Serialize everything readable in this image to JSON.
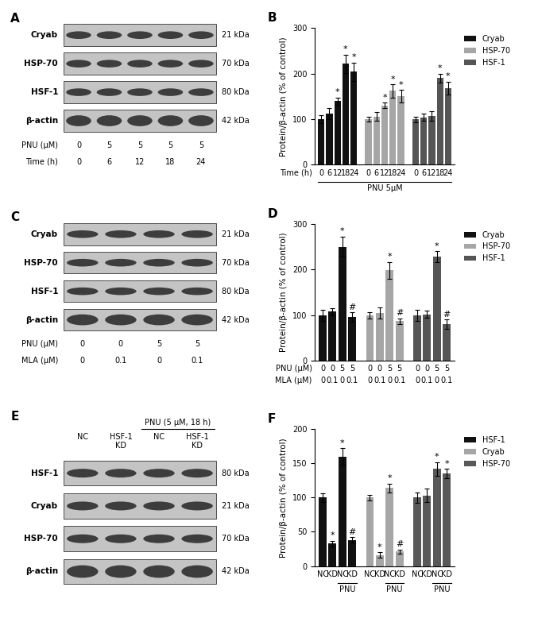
{
  "blots": [
    {
      "title": "A",
      "rows": [
        {
          "name": "Cryab",
          "size": "21 kDa"
        },
        {
          "name": "HSP-70",
          "size": "70 kDa"
        },
        {
          "name": "HSF-1",
          "size": "80 kDa"
        },
        {
          "name": "β-actin",
          "size": "42 kDa"
        }
      ],
      "conditions": [
        {
          "name": "PNU (μM)",
          "values": [
            "0",
            "5",
            "5",
            "5",
            "5"
          ]
        },
        {
          "name": "Time (h)",
          "values": [
            "0",
            "6",
            "12",
            "18",
            "24"
          ]
        }
      ]
    },
    {
      "title": "C",
      "rows": [
        {
          "name": "Cryab",
          "size": "21 kDa"
        },
        {
          "name": "HSP-70",
          "size": "70 kDa"
        },
        {
          "name": "HSF-1",
          "size": "80 kDa"
        },
        {
          "name": "β-actin",
          "size": "42 kDa"
        }
      ],
      "conditions": [
        {
          "name": "PNU (μM)",
          "values": [
            "0",
            "0",
            "5",
            "5"
          ]
        },
        {
          "name": "MLA (μM)",
          "values": [
            "0",
            "0.1",
            "0",
            "0.1"
          ]
        }
      ]
    },
    {
      "title": "E",
      "rows": [
        {
          "name": "HSF-1",
          "size": "80 kDa"
        },
        {
          "name": "Cryab",
          "size": "21 kDa"
        },
        {
          "name": "HSP-70",
          "size": "70 kDa"
        },
        {
          "name": "β-actin",
          "size": "42 kDa"
        }
      ],
      "lanes": [
        "NC",
        "HSF-1\nKD",
        "NC",
        "HSF-1\nKD"
      ],
      "header_spans": [
        {
          "text": "PNU (5 μM, 18 h)",
          "from": 2,
          "to": 3
        }
      ]
    }
  ],
  "chart_data": [
    {
      "type": "bar",
      "title": "B",
      "ylabel": "Protein/β-actin (% of control)",
      "ylim": [
        0,
        300
      ],
      "yticks": [
        0,
        100,
        200,
        300
      ],
      "legend": "upper right",
      "x_rows": [
        {
          "name": "Time (h)",
          "values": [
            "0",
            "6",
            "12",
            "18",
            "24",
            "0",
            "6",
            "12",
            "18",
            "24",
            "0",
            "6",
            "12",
            "18",
            "24"
          ]
        }
      ],
      "spans": [
        {
          "text": "PNU 5μM",
          "from": 0,
          "to": 14
        }
      ],
      "series": [
        {
          "name": "Cryab",
          "color": "#111111",
          "values": [
            100,
            112,
            140,
            222,
            204,
            null,
            null,
            null,
            null,
            null,
            null,
            null,
            null,
            null,
            null
          ],
          "errors": [
            8,
            12,
            8,
            20,
            20,
            null,
            null,
            null,
            null,
            null,
            null,
            null,
            null,
            null,
            null
          ],
          "marks": [
            null,
            null,
            "*",
            "*",
            "*",
            null,
            null,
            null,
            null,
            null,
            null,
            null,
            null,
            null,
            null
          ]
        },
        {
          "name": "HSP-70",
          "color": "#a6a6a6",
          "values": [
            null,
            null,
            null,
            null,
            null,
            100,
            106,
            130,
            162,
            150,
            null,
            null,
            null,
            null,
            null
          ],
          "errors": [
            null,
            null,
            null,
            null,
            null,
            5,
            10,
            6,
            14,
            14,
            null,
            null,
            null,
            null,
            null
          ],
          "marks": [
            null,
            null,
            null,
            null,
            null,
            null,
            null,
            "*",
            "*",
            "*",
            null,
            null,
            null,
            null,
            null
          ]
        },
        {
          "name": "HSF-1",
          "color": "#555555",
          "values": [
            null,
            null,
            null,
            null,
            null,
            null,
            null,
            null,
            null,
            null,
            100,
            104,
            107,
            190,
            168
          ],
          "errors": [
            null,
            null,
            null,
            null,
            null,
            null,
            null,
            null,
            null,
            null,
            6,
            8,
            10,
            10,
            14
          ],
          "marks": [
            null,
            null,
            null,
            null,
            null,
            null,
            null,
            null,
            null,
            null,
            null,
            null,
            null,
            "*",
            "*"
          ]
        }
      ]
    },
    {
      "type": "bar",
      "title": "D",
      "ylabel": "Protein/β-actin (% of control)",
      "ylim": [
        0,
        300
      ],
      "yticks": [
        0,
        100,
        200,
        300
      ],
      "legend": "upper right",
      "x_rows": [
        {
          "name": "PNU (μM)",
          "values": [
            "0",
            "0",
            "5",
            "5",
            "0",
            "0",
            "5",
            "5",
            "0",
            "0",
            "5",
            "5"
          ]
        },
        {
          "name": "MLA (μM)",
          "values": [
            "0",
            "0.1",
            "0",
            "0.1",
            "0",
            "0.1",
            "0",
            "0.1",
            "0",
            "0.1",
            "0",
            "0.1"
          ]
        }
      ],
      "series": [
        {
          "name": "Cryab",
          "color": "#111111",
          "values": [
            100,
            108,
            250,
            96,
            null,
            null,
            null,
            null,
            null,
            null,
            null,
            null
          ],
          "errors": [
            12,
            8,
            22,
            10,
            null,
            null,
            null,
            null,
            null,
            null,
            null,
            null
          ],
          "marks": [
            null,
            null,
            "*",
            "#",
            null,
            null,
            null,
            null,
            null,
            null,
            null,
            null
          ]
        },
        {
          "name": "HSP-70",
          "color": "#a6a6a6",
          "values": [
            null,
            null,
            null,
            null,
            100,
            105,
            198,
            87,
            null,
            null,
            null,
            null
          ],
          "errors": [
            null,
            null,
            null,
            null,
            7,
            12,
            18,
            6,
            null,
            null,
            null,
            null
          ],
          "marks": [
            null,
            null,
            null,
            null,
            null,
            null,
            "*",
            "#",
            null,
            null,
            null,
            null
          ]
        },
        {
          "name": "HSF-1",
          "color": "#555555",
          "values": [
            null,
            null,
            null,
            null,
            null,
            null,
            null,
            null,
            100,
            102,
            228,
            80
          ],
          "errors": [
            null,
            null,
            null,
            null,
            null,
            null,
            null,
            null,
            12,
            8,
            12,
            10
          ],
          "marks": [
            null,
            null,
            null,
            null,
            null,
            null,
            null,
            null,
            null,
            null,
            "*",
            "#"
          ]
        }
      ]
    },
    {
      "type": "bar",
      "title": "F",
      "ylabel": "Protein/β-actin (% of control)",
      "ylim": [
        0,
        200
      ],
      "yticks": [
        0,
        50,
        100,
        150,
        200
      ],
      "legend": "upper right",
      "x_rows": [
        {
          "values": [
            "NC",
            "KD",
            "NC",
            "KD",
            "NC",
            "KD",
            "NC",
            "KD",
            "NC",
            "KD",
            "NC",
            "KD"
          ]
        }
      ],
      "spans": [
        {
          "text": "PNU",
          "from": 2,
          "to": 3
        },
        {
          "text": "PNU",
          "from": 6,
          "to": 7
        },
        {
          "text": "PNU",
          "from": 10,
          "to": 11
        }
      ],
      "series": [
        {
          "name": "HSF-1",
          "color": "#111111",
          "values": [
            100,
            33,
            160,
            38,
            null,
            null,
            null,
            null,
            null,
            null,
            null,
            null
          ],
          "errors": [
            6,
            4,
            12,
            4,
            null,
            null,
            null,
            null,
            null,
            null,
            null,
            null
          ],
          "marks": [
            null,
            "*",
            "*",
            "#",
            null,
            null,
            null,
            null,
            null,
            null,
            null,
            null
          ]
        },
        {
          "name": "Cryab",
          "color": "#a6a6a6",
          "values": [
            null,
            null,
            null,
            null,
            100,
            16,
            114,
            21,
            null,
            null,
            null,
            null
          ],
          "errors": [
            null,
            null,
            null,
            null,
            4,
            4,
            6,
            3,
            null,
            null,
            null,
            null
          ],
          "marks": [
            null,
            null,
            null,
            null,
            null,
            "*",
            "*",
            "#",
            null,
            null,
            null,
            null
          ]
        },
        {
          "name": "HSP-70",
          "color": "#595959",
          "values": [
            null,
            null,
            null,
            null,
            null,
            null,
            null,
            null,
            100,
            103,
            142,
            135
          ],
          "errors": [
            null,
            null,
            null,
            null,
            null,
            null,
            null,
            null,
            8,
            10,
            10,
            7
          ],
          "marks": [
            null,
            null,
            null,
            null,
            null,
            null,
            null,
            null,
            null,
            null,
            "*",
            "*"
          ]
        }
      ]
    }
  ]
}
